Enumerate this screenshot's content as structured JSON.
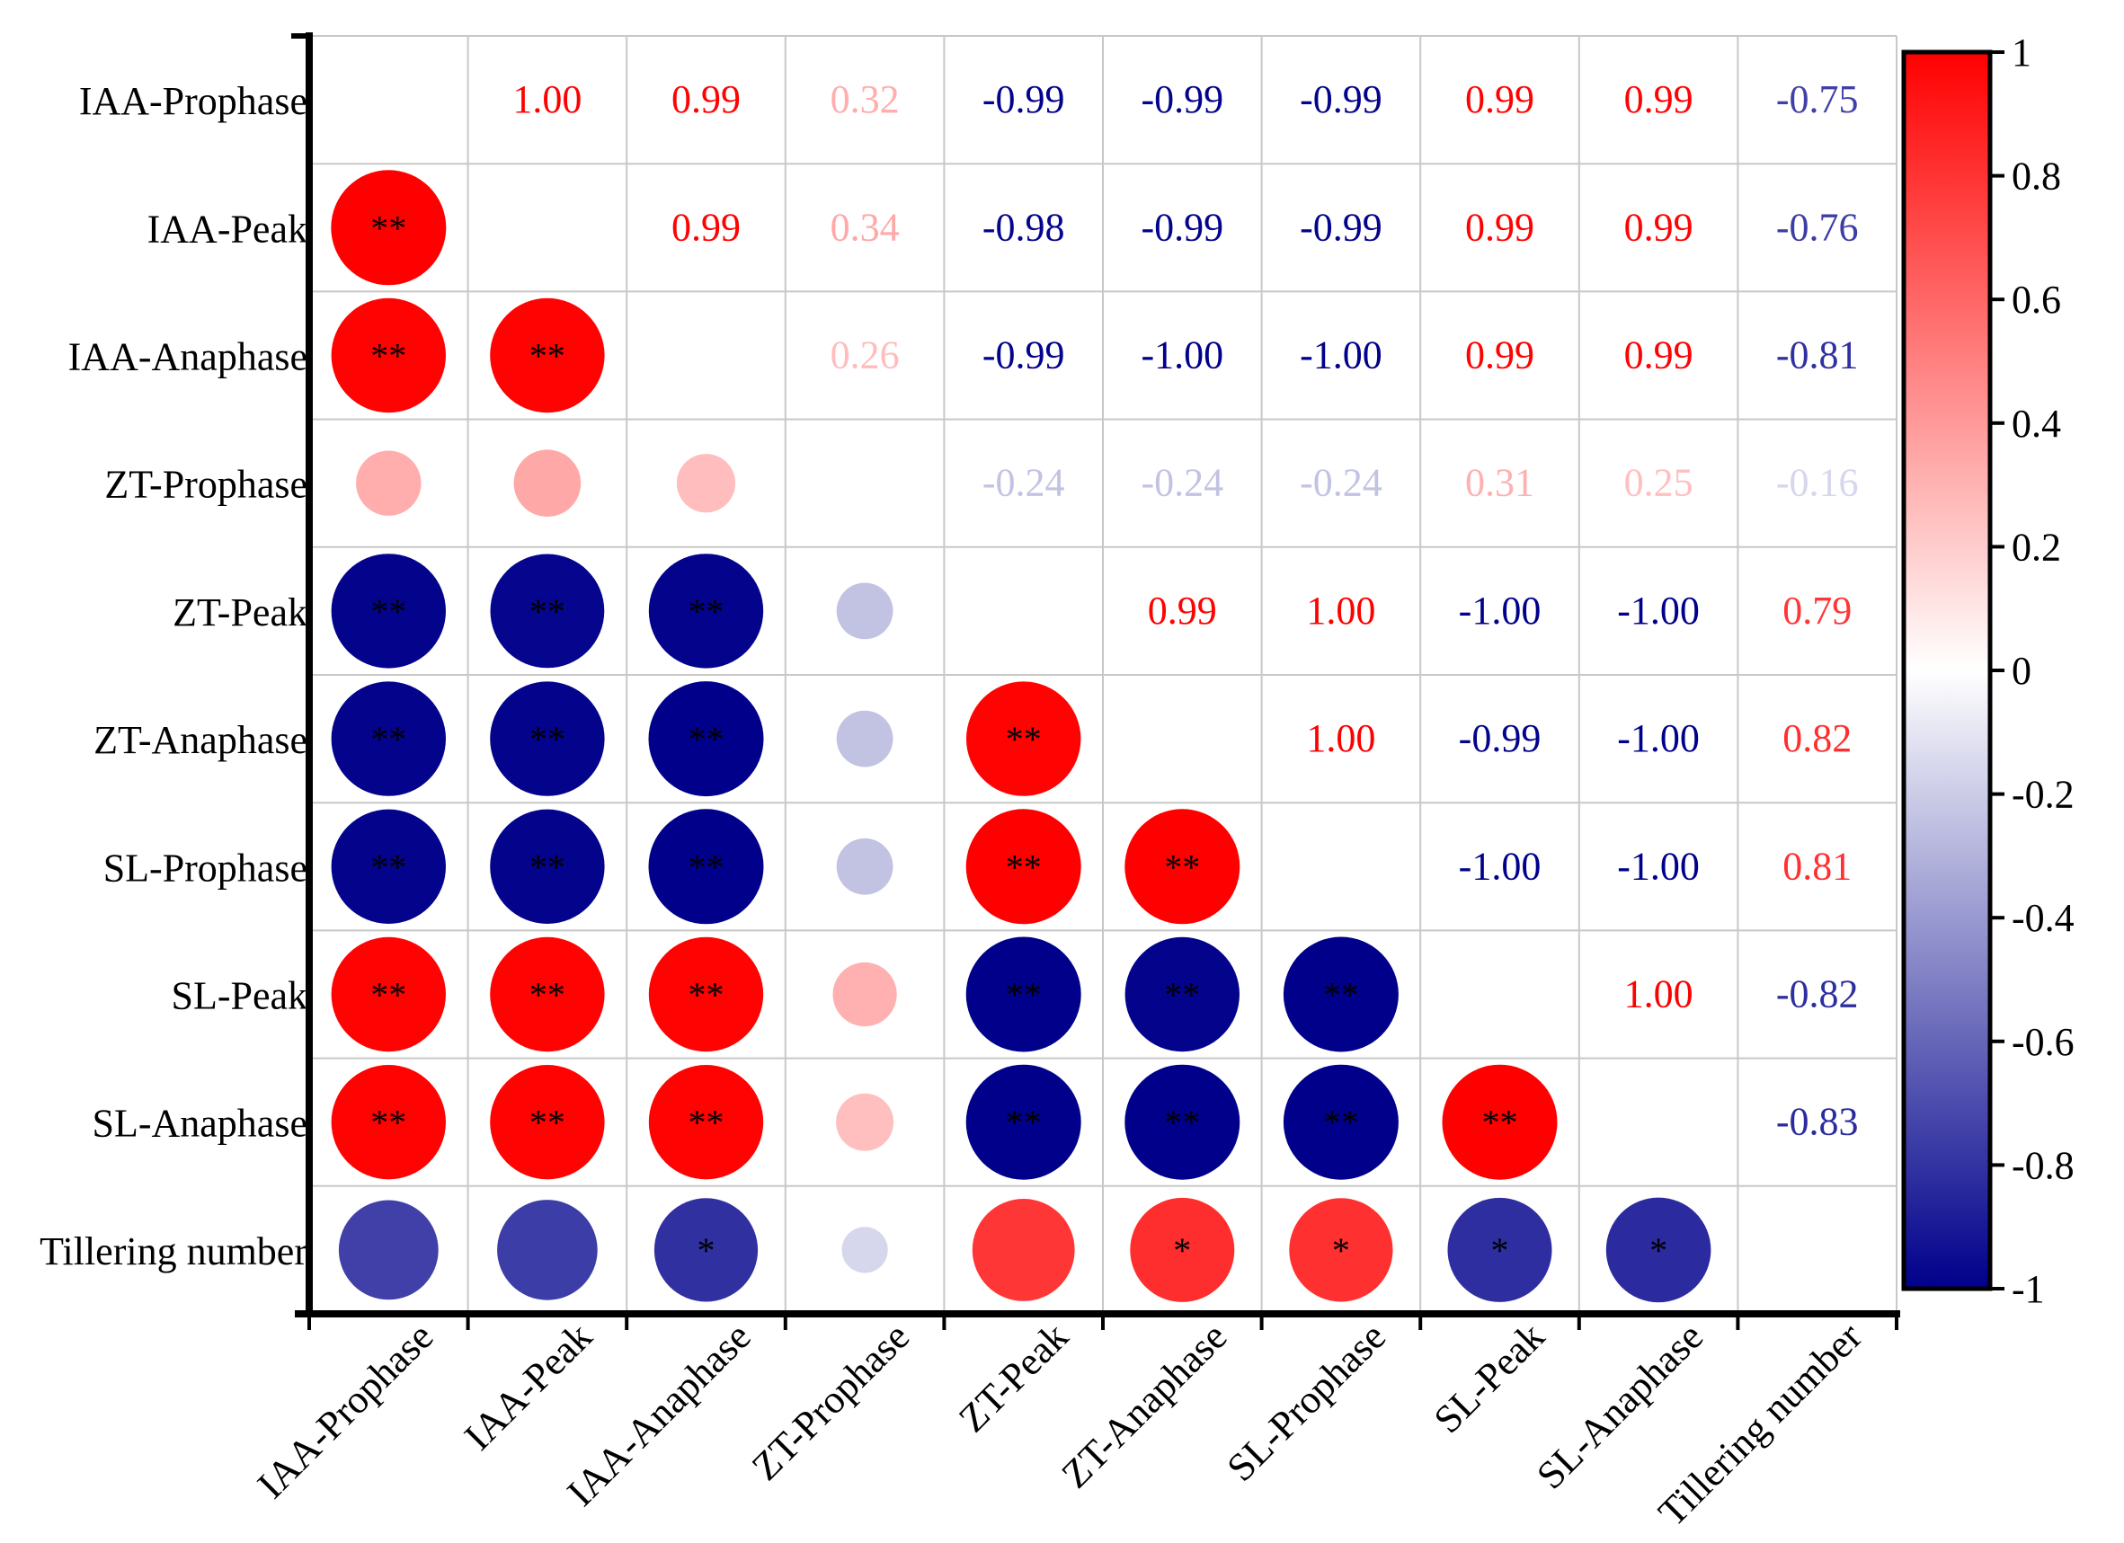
{
  "chart_data": {
    "type": "heatmap",
    "subtype": "correlation-matrix",
    "variables": [
      "IAA-Prophase",
      "IAA-Peak",
      "IAA-Anaphase",
      "ZT-Prophase",
      "ZT-Peak",
      "ZT-Anaphase",
      "SL-Prophase",
      "SL-Peak",
      "SL-Anaphase",
      "Tillering number"
    ],
    "upper_triangle": "numeric labels",
    "lower_triangle": "circles sized by |r|, colored by r, with significance stars",
    "matrix": [
      [
        null,
        1.0,
        0.99,
        0.32,
        -0.99,
        -0.99,
        -0.99,
        0.99,
        0.99,
        -0.75
      ],
      [
        1.0,
        null,
        0.99,
        0.34,
        -0.98,
        -0.99,
        -0.99,
        0.99,
        0.99,
        -0.76
      ],
      [
        0.99,
        0.99,
        null,
        0.26,
        -0.99,
        -1.0,
        -1.0,
        0.99,
        0.99,
        -0.81
      ],
      [
        0.32,
        0.34,
        0.26,
        null,
        -0.24,
        -0.24,
        -0.24,
        0.31,
        0.25,
        -0.16
      ],
      [
        -0.99,
        -0.98,
        -0.99,
        -0.24,
        null,
        0.99,
        1.0,
        -1.0,
        -1.0,
        0.79
      ],
      [
        -0.99,
        -0.99,
        -1.0,
        -0.24,
        0.99,
        null,
        1.0,
        -0.99,
        -1.0,
        0.82
      ],
      [
        -0.99,
        -0.99,
        -1.0,
        -0.24,
        1.0,
        1.0,
        null,
        -1.0,
        -1.0,
        0.81
      ],
      [
        0.99,
        0.99,
        0.99,
        0.31,
        -1.0,
        -0.99,
        -1.0,
        null,
        1.0,
        -0.82
      ],
      [
        0.99,
        0.99,
        0.99,
        0.25,
        -1.0,
        -1.0,
        -1.0,
        1.0,
        null,
        -0.83
      ],
      [
        -0.75,
        -0.76,
        -0.81,
        -0.16,
        0.79,
        0.82,
        0.81,
        -0.82,
        -0.83,
        null
      ]
    ],
    "labels": [
      [
        "",
        "1.00",
        "0.99",
        "0.32",
        "-0.99",
        "-0.99",
        "-0.99",
        "0.99",
        "0.99",
        "-0.75"
      ],
      [
        "",
        "",
        "0.99",
        "0.34",
        "-0.98",
        "-0.99",
        "-0.99",
        "0.99",
        "0.99",
        "-0.76"
      ],
      [
        "",
        "",
        "",
        "0.26",
        "-0.99",
        "-1.00",
        "-1.00",
        "0.99",
        "0.99",
        "-0.81"
      ],
      [
        "",
        "",
        "",
        "",
        "-0.24",
        "-0.24",
        "-0.24",
        "0.31",
        "0.25",
        "-0.16"
      ],
      [
        "",
        "",
        "",
        "",
        "",
        "0.99",
        "1.00",
        "-1.00",
        "-1.00",
        "0.79"
      ],
      [
        "",
        "",
        "",
        "",
        "",
        "",
        "1.00",
        "-0.99",
        "-1.00",
        "0.82"
      ],
      [
        "",
        "",
        "",
        "",
        "",
        "",
        "",
        "-1.00",
        "-1.00",
        "0.81"
      ],
      [
        "",
        "",
        "",
        "",
        "",
        "",
        "",
        "",
        "1.00",
        "-0.82"
      ],
      [
        "",
        "",
        "",
        "",
        "",
        "",
        "",
        "",
        "",
        "-0.83"
      ],
      [
        "",
        "",
        "",
        "",
        "",
        "",
        "",
        "",
        "",
        ""
      ]
    ],
    "significance": [
      [
        "",
        "",
        "",
        "",
        "",
        "",
        "",
        "",
        "",
        ""
      ],
      [
        "**",
        "",
        "",
        "",
        "",
        "",
        "",
        "",
        "",
        ""
      ],
      [
        "**",
        "**",
        "",
        "",
        "",
        "",
        "",
        "",
        "",
        ""
      ],
      [
        "",
        "",
        "",
        "",
        "",
        "",
        "",
        "",
        "",
        ""
      ],
      [
        "**",
        "**",
        "**",
        "",
        "",
        "",
        "",
        "",
        "",
        ""
      ],
      [
        "**",
        "**",
        "**",
        "",
        "**",
        "",
        "",
        "",
        "",
        ""
      ],
      [
        "**",
        "**",
        "**",
        "",
        "**",
        "**",
        "",
        "",
        "",
        ""
      ],
      [
        "**",
        "**",
        "**",
        "",
        "**",
        "**",
        "**",
        "",
        "",
        ""
      ],
      [
        "**",
        "**",
        "**",
        "",
        "**",
        "**",
        "**",
        "**",
        "",
        ""
      ],
      [
        "",
        "",
        "*",
        "",
        "",
        "*",
        "*",
        "*",
        "*",
        ""
      ]
    ],
    "colorbar": {
      "range": [
        -1,
        1
      ],
      "ticks": [
        1,
        0.8,
        0.6,
        0.4,
        0.2,
        0,
        -0.2,
        -0.4,
        -0.6,
        -0.8,
        -1
      ],
      "tick_labels": [
        "1",
        "0.8",
        "0.6",
        "0.4",
        "0.2",
        "0",
        "-0.2",
        "-0.4",
        "-0.6",
        "-0.8",
        "-1"
      ],
      "colors": {
        "negative": "#00008b",
        "zero": "#ffffff",
        "positive": "#ff0000"
      }
    },
    "legend_placement": "right"
  }
}
